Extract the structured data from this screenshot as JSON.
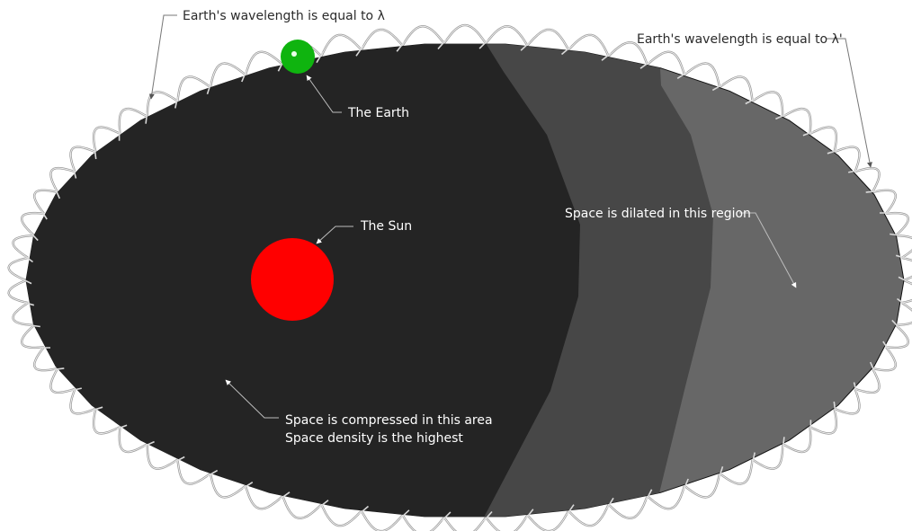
{
  "labels": {
    "earth_wavelength_left": "Earth's wavelength is equal to λ",
    "earth_wavelength_right": "Earth's wavelength is equal to λ'",
    "the_earth": "The Earth",
    "the_sun": "The Sun",
    "dilated": "Space is dilated in this region",
    "compressed_line1": "Space is compressed in this area",
    "compressed_line2": "Space density is the highest"
  },
  "colors": {
    "background": "#ffffff",
    "compressed_region": "#242424",
    "middle_region": "#474747",
    "dilated_region": "#676767",
    "sun": "#ff0000",
    "earth": "#0fb40f",
    "wave": "#9a9a9a",
    "label_on_dark": "#ffffff",
    "label_on_light": "#2a2a2a"
  },
  "icons": {
    "sun": "sun-icon",
    "earth": "earth-icon"
  }
}
